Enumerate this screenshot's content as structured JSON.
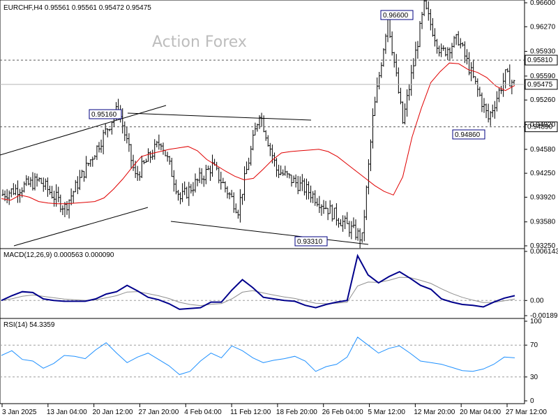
{
  "chart_data": {
    "type": "candlestick",
    "price_panel": {
      "title": "EURCHF,H4  0.95561 0.95561 0.95472 0.95475",
      "watermark": "Action Forex",
      "ylim": [
        0.9325,
        0.966
      ],
      "y_ticks": [
        {
          "value": 0.966,
          "label": "0.96600"
        },
        {
          "value": 0.9627,
          "label": "0.96270"
        },
        {
          "value": 0.9593,
          "label": "0.95930"
        },
        {
          "value": 0.9559,
          "label": "0.95590"
        },
        {
          "value": 0.9526,
          "label": "0.95260"
        },
        {
          "value": 0.9492,
          "label": "0.94920"
        },
        {
          "value": 0.9458,
          "label": "0.94580"
        },
        {
          "value": 0.9425,
          "label": "0.94250"
        },
        {
          "value": 0.9392,
          "label": "0.93920"
        },
        {
          "value": 0.9358,
          "label": "0.93580"
        },
        {
          "value": 0.9325,
          "label": "0.93250"
        }
      ],
      "levels": [
        {
          "value": 0.9581,
          "label": "0.95810",
          "style": "dashed"
        },
        {
          "value": 0.9489,
          "label": "0.94890",
          "style": "dashed"
        },
        {
          "value": 0.95475,
          "label": "0.95475",
          "style": "current"
        }
      ],
      "callouts": [
        {
          "label": "0.96600",
          "value": 0.966
        },
        {
          "label": "0.95160",
          "value": 0.9516
        },
        {
          "label": "0.93310",
          "value": 0.9331
        },
        {
          "label": "0.94860",
          "value": 0.9486
        }
      ],
      "ma_series": [
        0.939,
        0.9388,
        0.9395,
        0.9392,
        0.9386,
        0.9384,
        0.9383,
        0.9383,
        0.9384,
        0.9385,
        0.9386,
        0.9391,
        0.9403,
        0.9417,
        0.9433,
        0.9448,
        0.9452,
        0.9455,
        0.9458,
        0.946,
        0.9462,
        0.9456,
        0.9444,
        0.9436,
        0.9428,
        0.9421,
        0.9416,
        0.9418,
        0.943,
        0.9443,
        0.9453,
        0.9455,
        0.9456,
        0.9457,
        0.9458,
        0.9455,
        0.9448,
        0.9438,
        0.9428,
        0.9418,
        0.9408,
        0.94,
        0.9395,
        0.942,
        0.9475,
        0.9515,
        0.955,
        0.9565,
        0.9577,
        0.9576,
        0.9568,
        0.9564,
        0.9557,
        0.9545,
        0.9539,
        0.9546
      ]
    },
    "macd_panel": {
      "title": "MACD(12,26,9) 0.000563 0.000090",
      "ylim": [
        -0.001896,
        0.006143
      ],
      "y_ticks": [
        {
          "value": 0.006143,
          "label": "0.006143"
        },
        {
          "value": 0.0,
          "label": "0.00"
        },
        {
          "value": -0.001896,
          "label": "-0.001896"
        }
      ],
      "macd": [
        0.0,
        0.0006,
        0.0011,
        0.001,
        0.0002,
        0.0,
        -0.0001,
        -0.0001,
        -0.0001,
        0.0002,
        0.0008,
        0.0011,
        0.0019,
        0.0012,
        0.0004,
        0.0001,
        -0.0004,
        -0.0011,
        -0.001,
        -0.0009,
        -0.0002,
        -0.0002,
        0.0013,
        0.0026,
        0.0016,
        0.0004,
        0.0002,
        0.0,
        -0.0001,
        -0.0006,
        -0.0009,
        -0.0005,
        -0.0002,
        0.0,
        0.0056,
        0.0032,
        0.0022,
        0.003,
        0.0036,
        0.0028,
        0.0019,
        0.0014,
        0.0002,
        -0.0002,
        -0.0005,
        -0.0006,
        -0.0008,
        -0.0002,
        0.0003,
        0.0006
      ]
    },
    "rsi_panel": {
      "title": "RSI(14) 54.3359",
      "ylim": [
        0,
        100
      ],
      "y_ticks": [
        {
          "value": 100,
          "label": "100"
        },
        {
          "value": 70,
          "label": "70"
        },
        {
          "value": 30,
          "label": "30"
        },
        {
          "value": 0,
          "label": "0"
        }
      ],
      "rsi": [
        57,
        63,
        52,
        50,
        41,
        47,
        57,
        56,
        53,
        64,
        73,
        60,
        48,
        55,
        60,
        52,
        44,
        33,
        37,
        50,
        60,
        54,
        69,
        63,
        54,
        48,
        51,
        53,
        56,
        50,
        37,
        43,
        46,
        55,
        80,
        70,
        60,
        66,
        69,
        60,
        50,
        48,
        46,
        42,
        38,
        37,
        40,
        46,
        55,
        54
      ]
    },
    "x_ticks": [
      "3 Jan 2025",
      "13 Jan 04:00",
      "20 Jan 12:00",
      "27 Jan 20:00",
      "4 Feb 04:00",
      "11 Feb 12:00",
      "18 Feb 20:00",
      "26 Feb 04:00",
      "5 Mar 12:00",
      "12 Mar 20:00",
      "20 Mar 04:00",
      "27 Mar 12:00"
    ]
  },
  "colors": {
    "bars": "#000000",
    "ma": "#e00000",
    "macd": "#00008b",
    "signal": "#8f8f8f",
    "rsi": "#1e90ff",
    "grid": "#9e9e9e",
    "levels": "#5a5a5a",
    "callout_border": "#000080"
  }
}
